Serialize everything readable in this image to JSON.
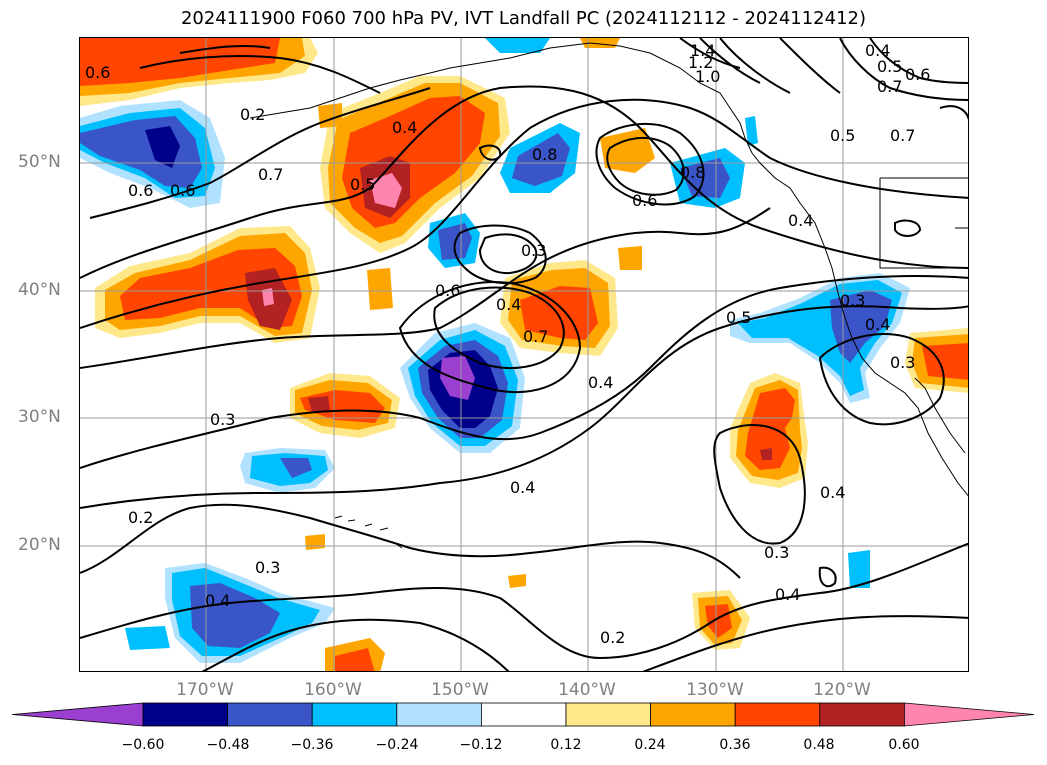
{
  "title": "2024111900 F060 700 hPa PV, IVT Landfall PC (2024112112 - 2024112412)",
  "lat_labels": [
    "50°N",
    "40°N",
    "30°N",
    "20°N"
  ],
  "lon_labels": [
    "170°W",
    "160°W",
    "150°W",
    "140°W",
    "130°W",
    "120°W"
  ],
  "colorbar": {
    "ticks": [
      "−0.60",
      "−0.48",
      "−0.36",
      "−0.24",
      "−0.12",
      "0.12",
      "0.24",
      "0.36",
      "0.48",
      "0.60"
    ],
    "colors": [
      "#9b3fd1",
      "#00008b",
      "#3a55c8",
      "#00bfff",
      "#b0e2ff",
      "#ffffff",
      "#ffe88a",
      "#ffa500",
      "#ff4500",
      "#b22222",
      "#ff85b0"
    ]
  },
  "contour_labels": [
    "1.4",
    "1.2",
    "1.0",
    "0.4",
    "0.5",
    "0.6",
    "0.7",
    "0.6",
    "0.2",
    "0.4",
    "0.5",
    "0.8",
    "0.6",
    "0.8",
    "0.5",
    "0.7",
    "0.6",
    "0.4",
    "0.3",
    "0.6",
    "0.4",
    "0.7",
    "0.5",
    "0.3",
    "0.4",
    "0.4",
    "0.3",
    "0.3",
    "0.4",
    "0.2",
    "0.3",
    "0.4",
    "0.4",
    "0.3",
    "0.2",
    "0.4",
    "0.6",
    "0.7"
  ],
  "colors": {
    "contour": "#000000",
    "grid": "#9a9a9a",
    "axis_label": "#808080"
  }
}
